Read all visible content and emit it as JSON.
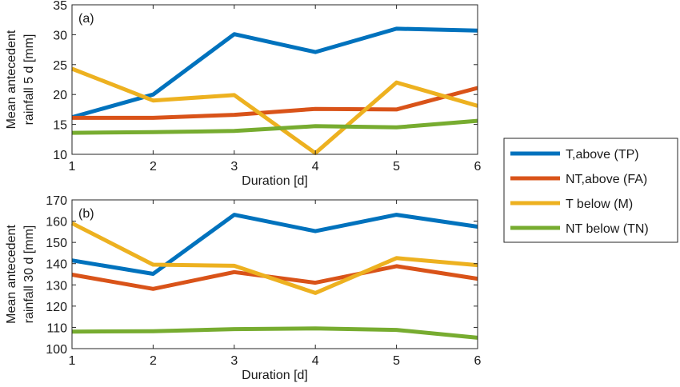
{
  "chart_data": [
    {
      "type": "line",
      "panel_label": "(a)",
      "xlabel": "Duration [d]",
      "ylabel": [
        "Mean antecedent",
        "rainfall 5 d [mm]"
      ],
      "x": [
        1,
        2,
        3,
        4,
        5,
        6
      ],
      "xlim": [
        1,
        6
      ],
      "ylim": [
        10,
        35
      ],
      "xticks": [
        "1",
        "2",
        "3",
        "4",
        "5",
        "6"
      ],
      "yticks": [
        10,
        15,
        20,
        25,
        30,
        35
      ],
      "grid": false,
      "series": [
        {
          "name": "T,above (TP)",
          "color": "#0072BD",
          "values": [
            16.2,
            20.0,
            30.1,
            27.1,
            31.0,
            30.7
          ]
        },
        {
          "name": "NT,above (FA)",
          "color": "#D95319",
          "values": [
            16.1,
            16.1,
            16.6,
            17.6,
            17.5,
            21.1
          ]
        },
        {
          "name": "T below (M)",
          "color": "#EDB120",
          "values": [
            24.3,
            19.0,
            19.9,
            10.2,
            22.0,
            18.1
          ]
        },
        {
          "name": "NT below (TN)",
          "color": "#77AC30",
          "values": [
            13.6,
            13.7,
            13.9,
            14.7,
            14.5,
            15.6
          ]
        }
      ]
    },
    {
      "type": "line",
      "panel_label": "(b)",
      "xlabel": "Duration [d]",
      "ylabel": [
        "Mean antecedent",
        "rainfall 30 d [mm]"
      ],
      "x": [
        1,
        2,
        3,
        4,
        5,
        6
      ],
      "xlim": [
        1,
        6
      ],
      "ylim": [
        100,
        170
      ],
      "xticks": [
        "1",
        "2",
        "3",
        "4",
        "5",
        "6"
      ],
      "yticks": [
        100,
        110,
        120,
        130,
        140,
        150,
        160,
        170
      ],
      "grid": false,
      "series": [
        {
          "name": "T,above (TP)",
          "color": "#0072BD",
          "values": [
            141.5,
            135.2,
            163.0,
            155.3,
            163.0,
            157.4
          ]
        },
        {
          "name": "NT,above (FA)",
          "color": "#D95319",
          "values": [
            134.8,
            128.1,
            136.0,
            131.0,
            138.8,
            132.9
          ]
        },
        {
          "name": "T below (M)",
          "color": "#EDB120",
          "values": [
            159.0,
            139.5,
            139.0,
            126.2,
            142.6,
            139.3
          ]
        },
        {
          "name": "NT below (TN)",
          "color": "#77AC30",
          "values": [
            108.0,
            108.2,
            109.2,
            109.5,
            108.8,
            105.1
          ]
        }
      ]
    }
  ],
  "legend": {
    "placement": "right",
    "entries": [
      {
        "label": "T,above (TP)",
        "color": "#0072BD"
      },
      {
        "label": "NT,above (FA)",
        "color": "#D95319"
      },
      {
        "label": "T below (M)",
        "color": "#EDB120"
      },
      {
        "label": "NT below (TN)",
        "color": "#77AC30"
      }
    ]
  }
}
